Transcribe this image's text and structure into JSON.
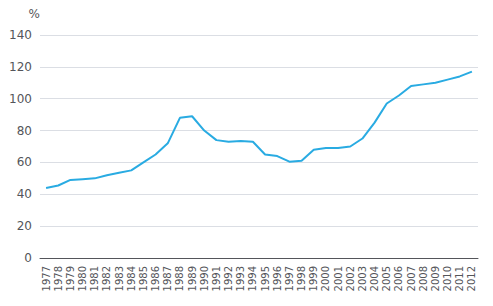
{
  "chart_data": {
    "type": "line",
    "ylabel": "%",
    "categories": [
      "1977",
      "1978",
      "1979",
      "1980",
      "1981",
      "1982",
      "1983",
      "1984",
      "1985",
      "1986",
      "1987",
      "1988",
      "1989",
      "1990",
      "1991",
      "1992",
      "1993",
      "1994",
      "1995",
      "1996",
      "1997",
      "1998",
      "1999",
      "2000",
      "2001",
      "2002",
      "2003",
      "2004",
      "2005",
      "2006",
      "2007",
      "2008",
      "2009",
      "2010",
      "2011",
      "2012"
    ],
    "values": [
      44,
      45.5,
      49,
      49.5,
      50,
      52,
      53.5,
      55,
      60,
      65,
      72,
      88,
      89,
      80,
      74,
      73,
      73.5,
      73,
      65,
      64,
      60.5,
      61,
      68,
      69,
      69,
      70,
      75,
      85,
      97,
      102,
      108,
      109,
      110,
      112,
      114,
      117
    ],
    "color": "#29abe2",
    "ylim": [
      0,
      140
    ],
    "yticks": [
      0,
      20,
      40,
      60,
      80,
      100,
      120,
      140
    ],
    "grid": true
  }
}
